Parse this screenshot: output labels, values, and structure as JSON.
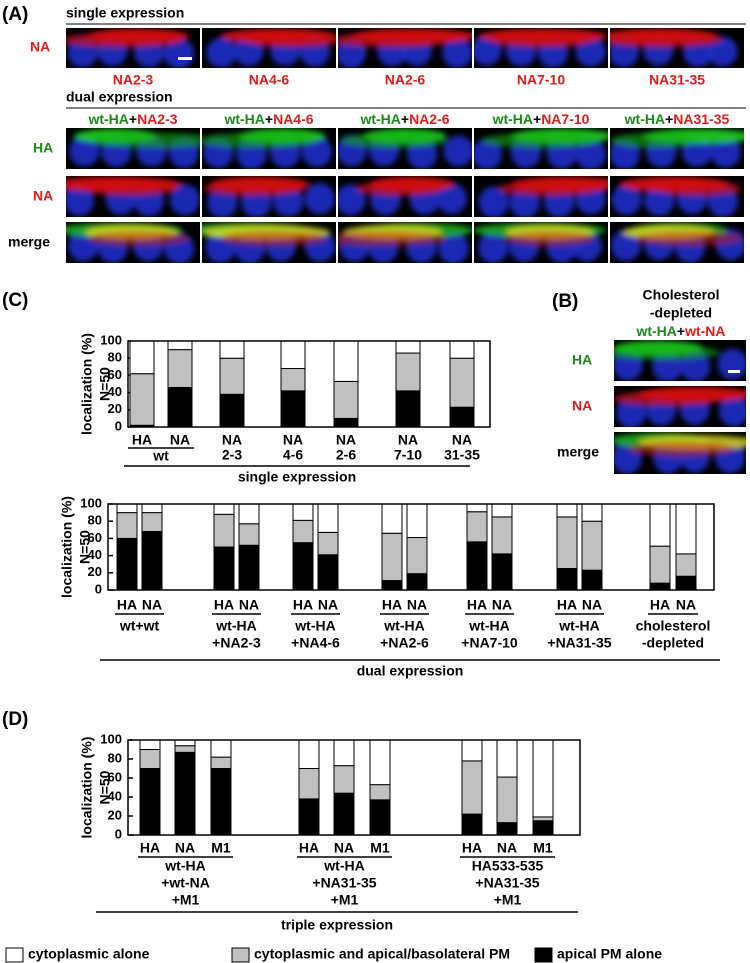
{
  "panel_a": {
    "label": "(A)",
    "single": {
      "title": "single expression",
      "row": "NA",
      "captions": [
        "NA2-3",
        "NA4-6",
        "NA2-6",
        "NA7-10",
        "NA31-35"
      ]
    },
    "dual": {
      "title": "dual expression",
      "headers": [
        {
          "ha": "wt-HA",
          "plus": "+",
          "na": "NA2-3"
        },
        {
          "ha": "wt-HA",
          "plus": "+",
          "na": "NA4-6"
        },
        {
          "ha": "wt-HA",
          "plus": "+",
          "na": "NA2-6"
        },
        {
          "ha": "wt-HA",
          "plus": "+",
          "na": "NA7-10"
        },
        {
          "ha": "wt-HA",
          "plus": "+",
          "na": "NA31-35"
        }
      ],
      "rows": [
        "HA",
        "NA",
        "merge"
      ]
    }
  },
  "panel_b": {
    "label": "(B)",
    "title": [
      "Cholesterol",
      "-depleted"
    ],
    "header": {
      "ha": "wt-HA",
      "plus": "+",
      "na": "wt-NA"
    },
    "rows": [
      "HA",
      "NA",
      "merge"
    ]
  },
  "panel_c_label": "(C)",
  "panel_d_label": "(D)",
  "legend": [
    {
      "name": "cytoplasmic alone",
      "color": "#ffffff"
    },
    {
      "name": "cytoplasmic and apical/basolateral PM",
      "color": "#c0c0c0"
    },
    {
      "name": "apical PM alone",
      "color": "#000000"
    }
  ],
  "chart_data": [
    {
      "type": "bar",
      "stacked": true,
      "y_label": [
        "localization (%)",
        "N=50"
      ],
      "ylim": [
        0,
        100
      ],
      "yticks": [
        0,
        20,
        40,
        60,
        80,
        100
      ],
      "footer": "single expression",
      "groups": [
        {
          "label": [
            "wt"
          ],
          "bars": [
            {
              "label": [
                "HA"
              ],
              "values": [
                38,
                60,
                2
              ]
            },
            {
              "label": [
                "NA"
              ],
              "values": [
                10,
                44,
                46
              ]
            }
          ]
        },
        {
          "bars": [
            {
              "label": [
                "NA",
                "2-3"
              ],
              "values": [
                20,
                42,
                38
              ]
            }
          ]
        },
        {
          "bars": [
            {
              "label": [
                "NA",
                "4-6"
              ],
              "values": [
                32,
                26,
                42
              ]
            }
          ]
        },
        {
          "bars": [
            {
              "label": [
                "NA",
                "2-6"
              ],
              "values": [
                47,
                43,
                10
              ]
            }
          ]
        },
        {
          "bars": [
            {
              "label": [
                "NA",
                "7-10"
              ],
              "values": [
                14,
                44,
                42
              ]
            }
          ]
        },
        {
          "bars": [
            {
              "label": [
                "NA",
                "31-35"
              ],
              "values": [
                20,
                57,
                23
              ]
            }
          ]
        }
      ]
    },
    {
      "type": "bar",
      "stacked": true,
      "y_label": [
        "localization (%)",
        "N=50"
      ],
      "ylim": [
        0,
        100
      ],
      "yticks": [
        0,
        20,
        40,
        60,
        80,
        100
      ],
      "footer": "dual expression",
      "groups": [
        {
          "label": [
            "wt+wt"
          ],
          "bars": [
            {
              "label": [
                "HA"
              ],
              "values": [
                10,
                30,
                60
              ]
            },
            {
              "label": [
                "NA"
              ],
              "values": [
                10,
                22,
                68
              ]
            }
          ]
        },
        {
          "label": [
            "wt-HA",
            "+NA2-3"
          ],
          "bars": [
            {
              "label": [
                "HA"
              ],
              "values": [
                12,
                38,
                50
              ]
            },
            {
              "label": [
                "NA"
              ],
              "values": [
                23,
                25,
                52
              ]
            }
          ]
        },
        {
          "label": [
            "wt-HA",
            "+NA4-6"
          ],
          "bars": [
            {
              "label": [
                "HA"
              ],
              "values": [
                19,
                26,
                55
              ]
            },
            {
              "label": [
                "NA"
              ],
              "values": [
                33,
                26,
                41
              ]
            }
          ]
        },
        {
          "label": [
            "wt-HA",
            "+NA2-6"
          ],
          "bars": [
            {
              "label": [
                "HA"
              ],
              "values": [
                34,
                55,
                11
              ]
            },
            {
              "label": [
                "NA"
              ],
              "values": [
                39,
                42,
                19
              ]
            }
          ]
        },
        {
          "label": [
            "wt-HA",
            "+NA7-10"
          ],
          "bars": [
            {
              "label": [
                "HA"
              ],
              "values": [
                9,
                35,
                56
              ]
            },
            {
              "label": [
                "NA"
              ],
              "values": [
                15,
                43,
                42
              ]
            }
          ]
        },
        {
          "label": [
            "wt-HA",
            "+NA31-35"
          ],
          "bars": [
            {
              "label": [
                "HA"
              ],
              "values": [
                15,
                60,
                25
              ]
            },
            {
              "label": [
                "NA"
              ],
              "values": [
                20,
                57,
                23
              ]
            }
          ]
        },
        {
          "label": [
            "cholesterol",
            "-depleted"
          ],
          "bars": [
            {
              "label": [
                "HA"
              ],
              "values": [
                49,
                43,
                8
              ]
            },
            {
              "label": [
                "NA"
              ],
              "values": [
                58,
                26,
                16
              ]
            }
          ]
        }
      ]
    },
    {
      "type": "bar",
      "stacked": true,
      "y_label": [
        "localization (%)",
        "N=50"
      ],
      "ylim": [
        0,
        100
      ],
      "yticks": [
        0,
        20,
        40,
        60,
        80,
        100
      ],
      "footer": "triple expression",
      "groups": [
        {
          "label": [
            "wt-HA",
            "+wt-NA",
            "+M1"
          ],
          "bars": [
            {
              "label": [
                "HA"
              ],
              "values": [
                10,
                20,
                70
              ]
            },
            {
              "label": [
                "NA"
              ],
              "values": [
                6,
                7,
                87
              ]
            },
            {
              "label": [
                "M1"
              ],
              "values": [
                18,
                12,
                70
              ]
            }
          ]
        },
        {
          "label": [
            "wt-HA",
            "+NA31-35",
            "+M1"
          ],
          "bars": [
            {
              "label": [
                "HA"
              ],
              "values": [
                30,
                32,
                38
              ]
            },
            {
              "label": [
                "NA"
              ],
              "values": [
                27,
                29,
                44
              ]
            },
            {
              "label": [
                "M1"
              ],
              "values": [
                47,
                16,
                37
              ]
            }
          ]
        },
        {
          "label": [
            "HA533-535",
            "+NA31-35",
            "+M1"
          ],
          "bars": [
            {
              "label": [
                "HA"
              ],
              "values": [
                22,
                56,
                22
              ]
            },
            {
              "label": [
                "NA"
              ],
              "values": [
                39,
                48,
                13
              ]
            },
            {
              "label": [
                "M1"
              ],
              "values": [
                81,
                4,
                15
              ]
            }
          ]
        }
      ]
    }
  ]
}
